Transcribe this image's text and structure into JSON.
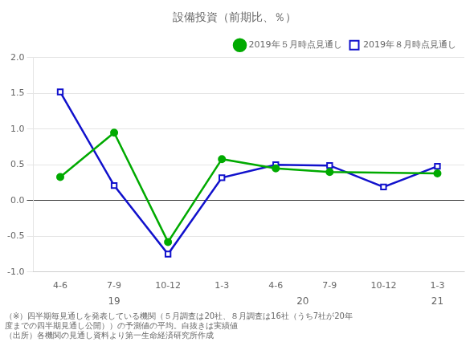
{
  "chart_data": {
    "type": "line",
    "title": "設備投資（前期比、％）",
    "categories": [
      "4-6",
      "7-9",
      "10-12",
      "1-3",
      "4-6",
      "7-9",
      "10-12",
      "1-3"
    ],
    "series": [
      {
        "name": "2019年５月時点見通し",
        "color": "#00aa00",
        "marker": "circle",
        "values": [
          0.33,
          0.95,
          -0.58,
          0.58,
          0.45,
          0.4,
          null,
          0.38
        ]
      },
      {
        "name": "2019年８月時点見通し",
        "color": "#1111cc",
        "marker": "square",
        "values": [
          1.52,
          0.21,
          -0.75,
          0.32,
          0.5,
          0.49,
          0.19,
          0.48
        ]
      }
    ],
    "ylim": [
      -1.0,
      2.0
    ],
    "yticks": [
      {
        "value": -1,
        "label": "-1.0"
      },
      -0.5,
      {
        "value": 0,
        "label": "0.0"
      },
      0.5,
      {
        "value": 1,
        "label": "1.0"
      },
      1.5,
      {
        "value": 2,
        "label": "2.0"
      }
    ],
    "grid": true,
    "legend": "upper right",
    "annotations": [
      {
        "text": "19",
        "x": 1
      },
      {
        "text": "20",
        "x": 4.5
      },
      {
        "text": "21",
        "x": 7
      }
    ],
    "footnotes": [
      "（※）四半期毎見通しを発表している機関（５月調査は20社、８月調査は16社（うち7社が20年",
      "度までの四半期見通し公開））の予測値の平均。白抜きは実績値",
      "（出所）各機関の見通し資料より第一生命経済研究所作成"
    ]
  }
}
